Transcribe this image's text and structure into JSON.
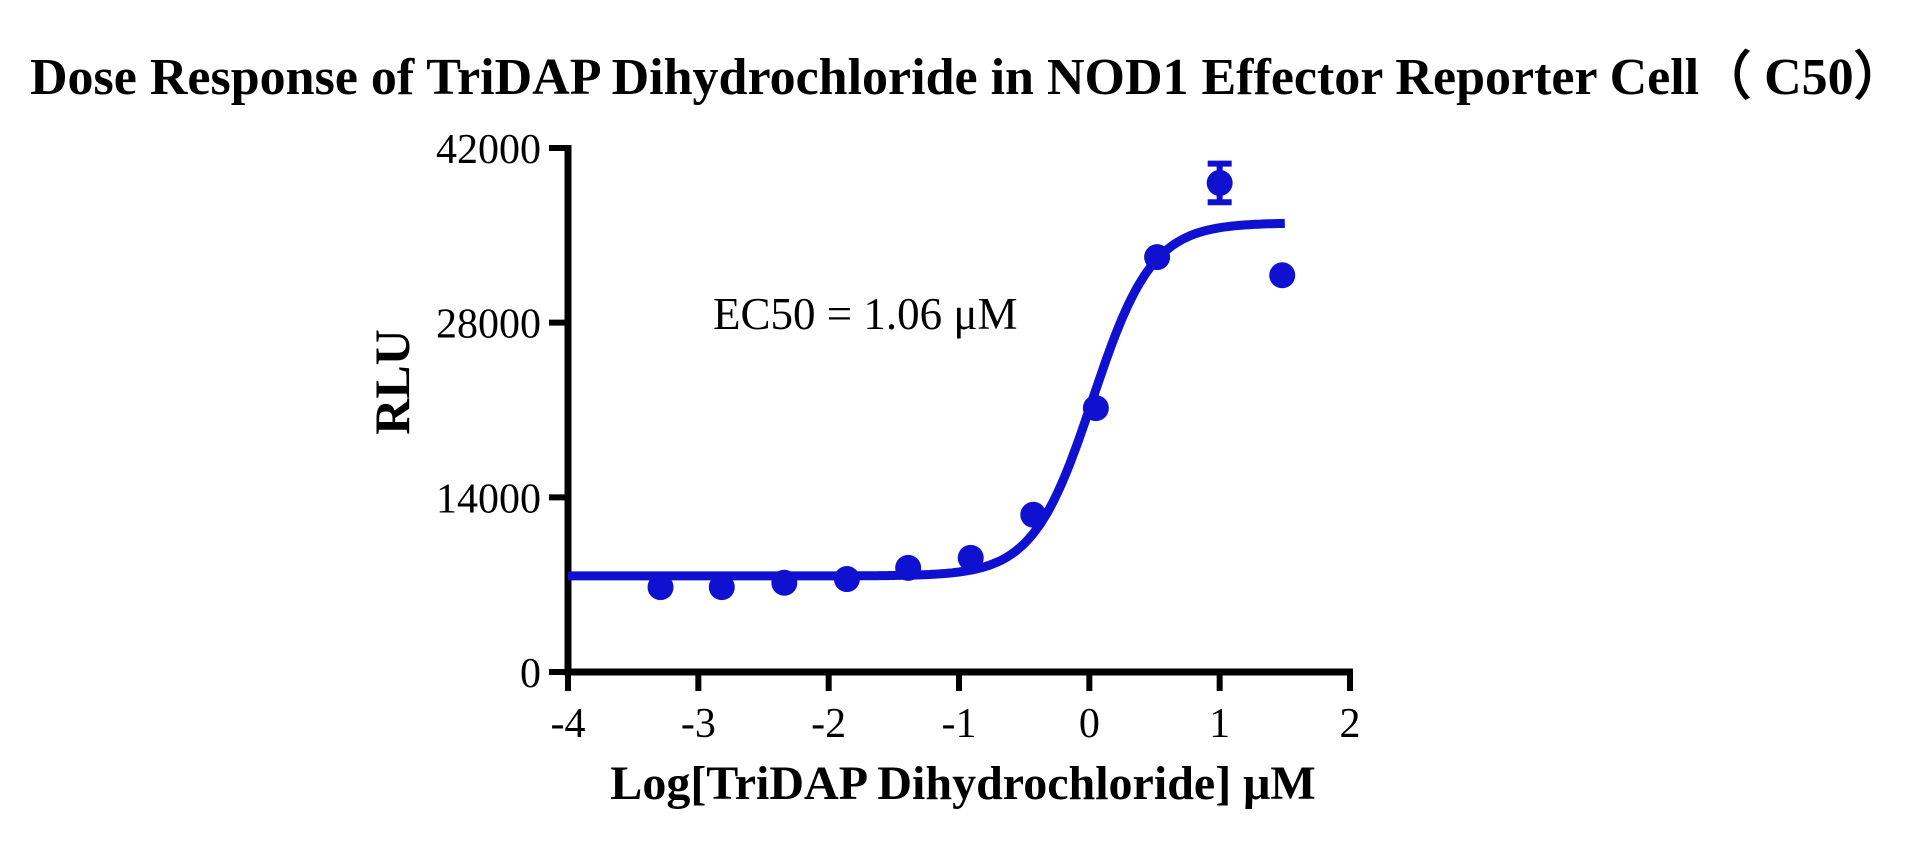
{
  "title": "Dose Response of TriDAP Dihydrochloride in NOD1 Effector Reporter Cell（ C50）",
  "chart_data": {
    "type": "scatter",
    "title": "Dose Response of TriDAP Dihydrochloride in NOD1 Effector Reporter Cell（ C50）",
    "xlabel": "Log[TriDAP Dihydrochloride] μM",
    "ylabel": "RLU",
    "annotation": "EC50 = 1.06 μM",
    "ec50_uM": 1.06,
    "xlim": [
      -4,
      2
    ],
    "ylim": [
      0,
      42000
    ],
    "x_ticks": [
      -4,
      -3,
      -2,
      -1,
      0,
      1,
      2
    ],
    "y_ticks": [
      0,
      14000,
      28000,
      42000
    ],
    "grid": false,
    "legend": "none",
    "series": [
      {
        "name": "TriDAP Dihydrochloride",
        "x_log_uM": [
          -3.29,
          -2.82,
          -2.34,
          -1.86,
          -1.39,
          -0.91,
          -0.43,
          0.05,
          0.52,
          1.0,
          1.48
        ],
        "y_rlu": [
          6800,
          6800,
          7150,
          7450,
          8350,
          9150,
          12600,
          21150,
          33250,
          39200,
          31800
        ]
      }
    ],
    "error_bars": [
      {
        "x_log_uM": 1.0,
        "y_rlu": 39200,
        "plus_minus_rlu": 1550
      }
    ],
    "fit_curve": {
      "model": "4PL-sigmoid",
      "bottom_rlu": 7700,
      "top_rlu": 36000,
      "log_ec50": 0.025,
      "hill_slope": 1.9,
      "x_start": -4,
      "x_end": 1.5
    },
    "series_color": "#1010d0",
    "axis_color": "#000000"
  }
}
